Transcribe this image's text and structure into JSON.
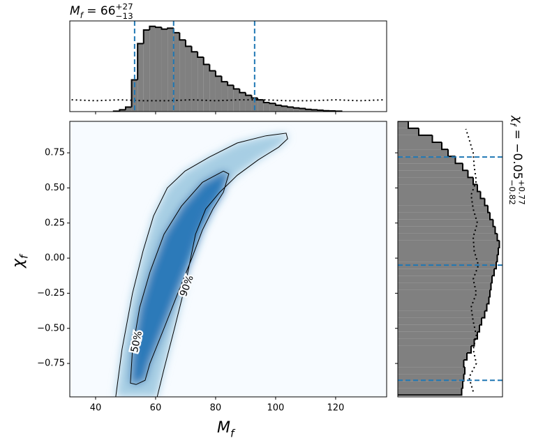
{
  "chart_data": [
    {
      "type": "histogram",
      "orientation": "vertical",
      "title": {
        "symbol": "M",
        "subscript": "f",
        "text": " = 66",
        "upper": "+27",
        "lower": "−13"
      },
      "bins": [
        46,
        48,
        50,
        52,
        54,
        56,
        58,
        60,
        62,
        64,
        66,
        68,
        70,
        72,
        74,
        76,
        78,
        80,
        82,
        84,
        86,
        88,
        90,
        92,
        94,
        96,
        98,
        100,
        102,
        104,
        106,
        108,
        110,
        112,
        114,
        116,
        118,
        120,
        122
      ],
      "values": [
        0.005,
        0.02,
        0.05,
        0.35,
        0.75,
        0.9,
        0.94,
        0.93,
        0.91,
        0.92,
        0.87,
        0.79,
        0.72,
        0.66,
        0.6,
        0.52,
        0.45,
        0.39,
        0.33,
        0.29,
        0.25,
        0.21,
        0.18,
        0.15,
        0.13,
        0.1,
        0.09,
        0.07,
        0.06,
        0.05,
        0.04,
        0.035,
        0.025,
        0.02,
        0.015,
        0.01,
        0.008,
        0.005
      ],
      "color": "#808080",
      "edgecolor": "#000000",
      "xlim": [
        31.4,
        137
      ],
      "ylim": [
        0,
        1
      ],
      "xticks": [
        40,
        60,
        80,
        100,
        120
      ],
      "prior": {
        "x": [
          32,
          40,
          48,
          56,
          64,
          72,
          80,
          88,
          96,
          104,
          112,
          120,
          128,
          136
        ],
        "y": [
          0.13,
          0.12,
          0.13,
          0.12,
          0.12,
          0.13,
          0.12,
          0.13,
          0.13,
          0.12,
          0.12,
          0.13,
          0.12,
          0.13
        ]
      },
      "prior_color": "#000000",
      "quantiles": [
        53,
        66,
        93
      ],
      "quantile_color": "#1f77b4"
    },
    {
      "type": "density",
      "x_label": {
        "symbol": "M",
        "subscript": "f"
      },
      "y_label": {
        "symbol": "χ",
        "subscript": "f"
      },
      "xlim": [
        31.4,
        137
      ],
      "ylim": [
        -0.988,
        0.974
      ],
      "xticks": [
        40,
        60,
        80,
        100,
        120
      ],
      "yticks": [
        {
          "value": -0.75,
          "label": "−0.75"
        },
        {
          "value": -0.5,
          "label": "−0.50"
        },
        {
          "value": -0.25,
          "label": "−0.25"
        },
        {
          "value": 0,
          "label": "0.00"
        },
        0.25,
        {
          "value": 0.5,
          "label": "0.50"
        },
        0.75
      ],
      "background": "#f7fbff",
      "line_color": "#000000",
      "contours": [
        {
          "label": "90%",
          "fill": "#9ecae1",
          "x": [
            46.7,
            48.8,
            52.3,
            55.8,
            59.3,
            63.9,
            69.8,
            77.9,
            87.2,
            96.5,
            103.5,
            104,
            101,
            94.2,
            87.2,
            81.4,
            76.7,
            73.3,
            69.8,
            66.3,
            62.8,
            60.5
          ],
          "y": [
            -0.99,
            -0.65,
            -0.25,
            0.05,
            0.3,
            0.5,
            0.62,
            0.72,
            0.82,
            0.87,
            0.89,
            0.85,
            0.79,
            0.7,
            0.59,
            0.47,
            0.35,
            0.17,
            -0.2,
            -0.5,
            -0.79,
            -0.99
          ]
        },
        {
          "label": "50%",
          "fill": "#2171b5",
          "x": [
            51.6,
            52.3,
            54.7,
            58.1,
            62.8,
            68.6,
            75.6,
            82.6,
            84.4,
            82.6,
            79.1,
            75.6,
            72.1,
            67.4,
            62.8,
            58.1,
            56.5,
            53.5
          ],
          "y": [
            -0.89,
            -0.65,
            -0.35,
            -0.1,
            0.17,
            0.37,
            0.54,
            0.62,
            0.6,
            0.47,
            0.35,
            0.2,
            0,
            -0.25,
            -0.5,
            -0.75,
            -0.87,
            -0.9
          ]
        }
      ]
    },
    {
      "type": "histogram",
      "orientation": "horizontal",
      "title": {
        "symbol": "χ",
        "subscript": "f",
        "text": " = −0.05",
        "upper": "+0.77",
        "lower": "−0.82"
      },
      "bins": [
        -0.975,
        -0.925,
        -0.875,
        -0.825,
        -0.775,
        -0.725,
        -0.675,
        -0.625,
        -0.575,
        -0.525,
        -0.475,
        -0.425,
        -0.375,
        -0.325,
        -0.275,
        -0.225,
        -0.175,
        -0.125,
        -0.075,
        -0.025,
        0.025,
        0.075,
        0.125,
        0.175,
        0.225,
        0.275,
        0.325,
        0.375,
        0.425,
        0.475,
        0.525,
        0.575,
        0.625,
        0.675,
        0.725,
        0.775,
        0.825,
        0.875,
        0.925,
        0.975
      ],
      "values": [
        0.61,
        0.62,
        0.63,
        0.64,
        0.63,
        0.66,
        0.7,
        0.73,
        0.76,
        0.78,
        0.8,
        0.83,
        0.85,
        0.87,
        0.88,
        0.89,
        0.9,
        0.92,
        0.94,
        0.95,
        0.96,
        0.97,
        0.95,
        0.93,
        0.91,
        0.88,
        0.86,
        0.83,
        0.79,
        0.76,
        0.72,
        0.67,
        0.62,
        0.55,
        0.48,
        0.42,
        0.33,
        0.2,
        0.1
      ],
      "color": "#808080",
      "edgecolor": "#000000",
      "xlim": [
        0,
        1
      ],
      "ylim": [
        -0.988,
        0.974
      ],
      "yticks": [
        -0.75,
        -0.5,
        -0.25,
        0,
        0.25,
        0.5,
        0.75
      ],
      "prior": {
        "y": [
          -0.95,
          -0.85,
          -0.75,
          -0.65,
          -0.55,
          -0.45,
          -0.35,
          -0.25,
          -0.15,
          -0.05,
          0.05,
          0.15,
          0.25,
          0.35,
          0.45,
          0.55,
          0.65,
          0.75,
          0.85,
          0.92
        ],
        "x": [
          0.72,
          0.68,
          0.75,
          0.72,
          0.75,
          0.72,
          0.7,
          0.75,
          0.72,
          0.77,
          0.73,
          0.72,
          0.76,
          0.72,
          0.7,
          0.75,
          0.73,
          0.72,
          0.68,
          0.65
        ]
      },
      "prior_color": "#000000",
      "quantiles": [
        -0.87,
        -0.05,
        0.72
      ],
      "quantile_color": "#1f77b4"
    }
  ]
}
